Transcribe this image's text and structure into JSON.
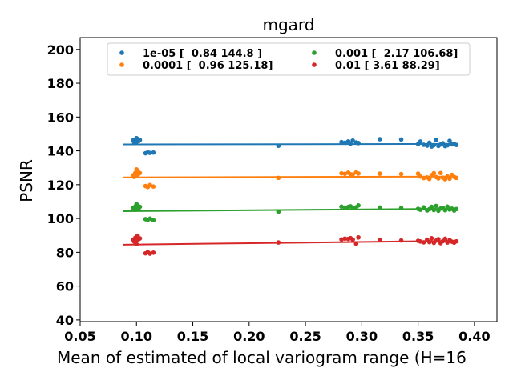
{
  "chart_data": {
    "type": "scatter",
    "title": "mgard",
    "xlabel": "Mean of estimated of local variogram range (H=16",
    "ylabel": "PSNR",
    "xlim": [
      0.05,
      0.42
    ],
    "ylim": [
      39,
      207
    ],
    "xticks": [
      0.05,
      0.1,
      0.15,
      0.2,
      0.25,
      0.3,
      0.35,
      0.4
    ],
    "xtick_labels": [
      "0.05",
      "0.10",
      "0.15",
      "0.20",
      "0.25",
      "0.30",
      "0.35",
      "0.40"
    ],
    "yticks": [
      40,
      60,
      80,
      100,
      120,
      140,
      160,
      180,
      200
    ],
    "ytick_labels": [
      "40",
      "60",
      "80",
      "100",
      "120",
      "140",
      "160",
      "180",
      "200"
    ],
    "grid": false,
    "legend_placement": "top-center",
    "legend_columns": 2,
    "series": [
      {
        "name": "1e-05 [  0.84 144.8 ]",
        "color": "#1f77b4",
        "fit": {
          "x": [
            0.088,
            0.385
          ],
          "y": [
            143.8,
            144.1
          ]
        },
        "points": [
          [
            0.097,
            146.2
          ],
          [
            0.099,
            146.8
          ],
          [
            0.1,
            145.3
          ],
          [
            0.101,
            147.0
          ],
          [
            0.102,
            145.8
          ],
          [
            0.098,
            144.9
          ],
          [
            0.103,
            146.4
          ],
          [
            0.1,
            147.5
          ],
          [
            0.108,
            138.6
          ],
          [
            0.11,
            139.1
          ],
          [
            0.112,
            138.8
          ],
          [
            0.115,
            139.0
          ],
          [
            0.226,
            143.0
          ],
          [
            0.282,
            145.2
          ],
          [
            0.285,
            144.8
          ],
          [
            0.288,
            145.6
          ],
          [
            0.29,
            144.3
          ],
          [
            0.292,
            146.1
          ],
          [
            0.295,
            145.0
          ],
          [
            0.297,
            144.6
          ],
          [
            0.316,
            146.9
          ],
          [
            0.335,
            146.7
          ],
          [
            0.35,
            144.0
          ],
          [
            0.352,
            145.5
          ],
          [
            0.355,
            143.6
          ],
          [
            0.358,
            143.1
          ],
          [
            0.36,
            144.8
          ],
          [
            0.362,
            142.6
          ],
          [
            0.364,
            143.4
          ],
          [
            0.366,
            146.4
          ],
          [
            0.368,
            142.9
          ],
          [
            0.37,
            143.8
          ],
          [
            0.372,
            144.5
          ],
          [
            0.374,
            142.8
          ],
          [
            0.376,
            143.3
          ],
          [
            0.378,
            145.9
          ],
          [
            0.38,
            143.9
          ],
          [
            0.382,
            144.2
          ],
          [
            0.384,
            143.5
          ]
        ]
      },
      {
        "name": "0.0001 [  0.96 125.18]",
        "color": "#ff7f0e",
        "fit": {
          "x": [
            0.088,
            0.385
          ],
          "y": [
            124.3,
            124.8
          ]
        },
        "points": [
          [
            0.097,
            125.6
          ],
          [
            0.099,
            127.0
          ],
          [
            0.1,
            125.2
          ],
          [
            0.101,
            128.3
          ],
          [
            0.102,
            126.5
          ],
          [
            0.098,
            124.6
          ],
          [
            0.103,
            126.9
          ],
          [
            0.1,
            129.0
          ],
          [
            0.108,
            119.2
          ],
          [
            0.11,
            118.6
          ],
          [
            0.112,
            119.8
          ],
          [
            0.115,
            118.9
          ],
          [
            0.226,
            124.0
          ],
          [
            0.282,
            126.7
          ],
          [
            0.285,
            126.4
          ],
          [
            0.288,
            127.1
          ],
          [
            0.29,
            126.2
          ],
          [
            0.292,
            126.0
          ],
          [
            0.295,
            127.3
          ],
          [
            0.297,
            126.6
          ],
          [
            0.316,
            126.5
          ],
          [
            0.335,
            126.3
          ],
          [
            0.35,
            126.5
          ],
          [
            0.352,
            124.8
          ],
          [
            0.355,
            123.9
          ],
          [
            0.358,
            124.3
          ],
          [
            0.36,
            123.4
          ],
          [
            0.362,
            125.6
          ],
          [
            0.364,
            126.8
          ],
          [
            0.366,
            124.5
          ],
          [
            0.368,
            123.7
          ],
          [
            0.37,
            126.9
          ],
          [
            0.372,
            124.1
          ],
          [
            0.374,
            123.2
          ],
          [
            0.376,
            124.9
          ],
          [
            0.378,
            123.5
          ],
          [
            0.38,
            125.8
          ],
          [
            0.382,
            124.6
          ],
          [
            0.384,
            124.0
          ]
        ]
      },
      {
        "name": "0.001 [  2.17 106.68]",
        "color": "#2ca02c",
        "fit": {
          "x": [
            0.088,
            0.385
          ],
          "y": [
            104.3,
            105.8
          ]
        },
        "points": [
          [
            0.097,
            106.3
          ],
          [
            0.099,
            107.1
          ],
          [
            0.1,
            105.8
          ],
          [
            0.101,
            107.8
          ],
          [
            0.102,
            106.0
          ],
          [
            0.098,
            105.2
          ],
          [
            0.103,
            106.9
          ],
          [
            0.1,
            108.5
          ],
          [
            0.108,
            99.6
          ],
          [
            0.11,
            99.2
          ],
          [
            0.112,
            99.9
          ],
          [
            0.115,
            99.0
          ],
          [
            0.226,
            104.0
          ],
          [
            0.282,
            107.0
          ],
          [
            0.285,
            106.4
          ],
          [
            0.288,
            106.8
          ],
          [
            0.29,
            107.2
          ],
          [
            0.292,
            106.1
          ],
          [
            0.295,
            106.6
          ],
          [
            0.297,
            107.7
          ],
          [
            0.316,
            106.5
          ],
          [
            0.335,
            106.2
          ],
          [
            0.35,
            105.7
          ],
          [
            0.352,
            105.2
          ],
          [
            0.355,
            106.6
          ],
          [
            0.358,
            104.8
          ],
          [
            0.36,
            105.5
          ],
          [
            0.362,
            106.9
          ],
          [
            0.364,
            105.0
          ],
          [
            0.366,
            107.4
          ],
          [
            0.368,
            104.6
          ],
          [
            0.37,
            105.9
          ],
          [
            0.372,
            106.3
          ],
          [
            0.374,
            104.9
          ],
          [
            0.376,
            107.0
          ],
          [
            0.378,
            105.3
          ],
          [
            0.38,
            105.8
          ],
          [
            0.382,
            104.7
          ],
          [
            0.384,
            105.6
          ]
        ]
      },
      {
        "name": "0.01 [ 3.61 88.29]",
        "color": "#d62728",
        "fit": {
          "x": [
            0.088,
            0.385
          ],
          "y": [
            84.5,
            86.8
          ]
        },
        "points": [
          [
            0.097,
            87.5
          ],
          [
            0.099,
            88.6
          ],
          [
            0.1,
            86.9
          ],
          [
            0.101,
            89.8
          ],
          [
            0.102,
            87.8
          ],
          [
            0.098,
            86.3
          ],
          [
            0.103,
            88.2
          ],
          [
            0.1,
            84.8
          ],
          [
            0.108,
            79.4
          ],
          [
            0.11,
            80.1
          ],
          [
            0.112,
            79.2
          ],
          [
            0.115,
            79.8
          ],
          [
            0.226,
            85.8
          ],
          [
            0.282,
            87.6
          ],
          [
            0.285,
            88.1
          ],
          [
            0.288,
            87.9
          ],
          [
            0.29,
            88.4
          ],
          [
            0.292,
            87.5
          ],
          [
            0.295,
            85.0
          ],
          [
            0.297,
            88.8
          ],
          [
            0.316,
            87.2
          ],
          [
            0.335,
            87.0
          ],
          [
            0.35,
            86.8
          ],
          [
            0.352,
            86.4
          ],
          [
            0.355,
            85.9
          ],
          [
            0.358,
            87.5
          ],
          [
            0.36,
            86.0
          ],
          [
            0.362,
            88.3
          ],
          [
            0.364,
            85.6
          ],
          [
            0.366,
            86.9
          ],
          [
            0.368,
            87.8
          ],
          [
            0.37,
            85.4
          ],
          [
            0.372,
            86.6
          ],
          [
            0.374,
            88.0
          ],
          [
            0.376,
            85.8
          ],
          [
            0.378,
            87.2
          ],
          [
            0.38,
            86.3
          ],
          [
            0.382,
            85.7
          ],
          [
            0.384,
            86.5
          ]
        ]
      }
    ]
  }
}
